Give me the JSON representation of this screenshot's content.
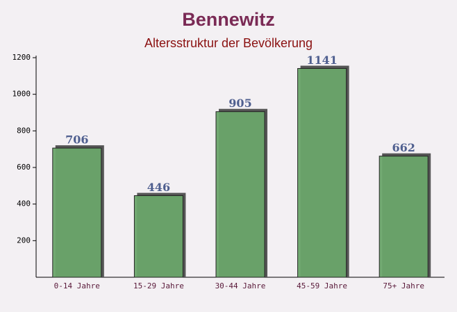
{
  "chart_data": {
    "type": "bar",
    "title": "Bennewitz",
    "subtitle": "Altersstruktur der Bevölkerung",
    "categories": [
      "0-14 Jahre",
      "15-29 Jahre",
      "30-44 Jahre",
      "45-59 Jahre",
      "75+ Jahre"
    ],
    "values": [
      706,
      446,
      905,
      1141,
      662
    ],
    "color": "#6aa56a",
    "ylim": [
      0,
      1200
    ],
    "yticks": [
      200,
      400,
      600,
      800,
      1000,
      1200
    ],
    "grid": false
  }
}
